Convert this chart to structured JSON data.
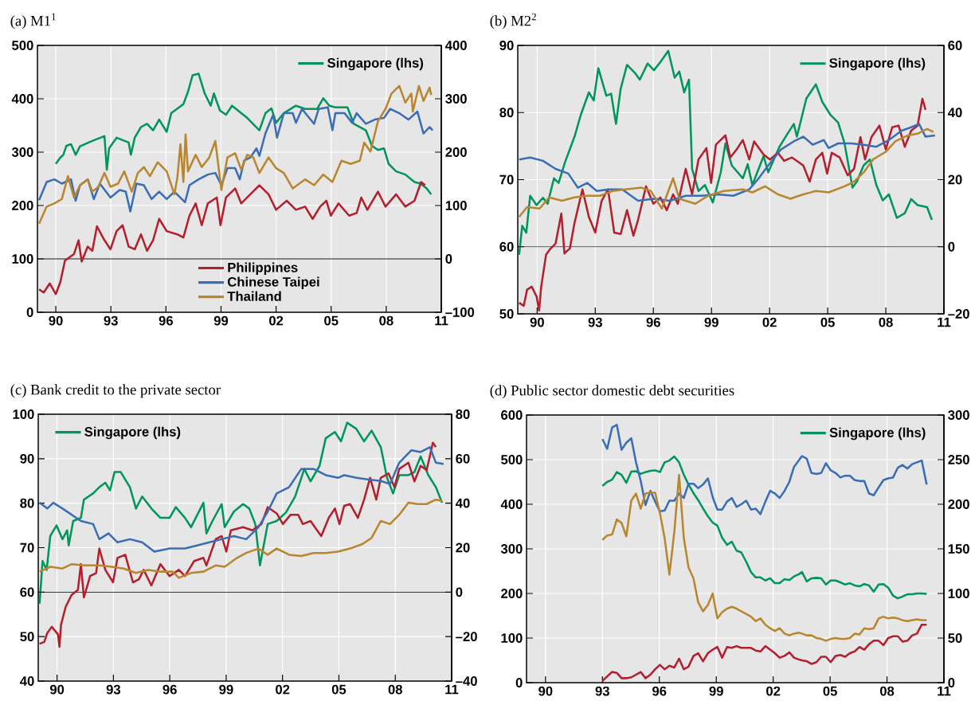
{
  "chart_data": [
    {
      "type": "line",
      "title": "(a) M1$^{1}$",
      "grid": true,
      "legend": "right",
      "xlim": [
        1989,
        2011
      ],
      "xticks": [
        {
          "value": 1990,
          "label": "90"
        },
        {
          "value": 1993,
          "label": "93"
        },
        {
          "value": 1996,
          "label": "96"
        },
        {
          "value": 1999,
          "label": "99"
        },
        {
          "value": 2002,
          "label": "02"
        },
        {
          "value": 2005,
          "label": "05"
        },
        {
          "value": 2008,
          "label": "08"
        },
        {
          "value": 2011,
          "label": "11"
        }
      ],
      "ylim": [
        0,
        500
      ],
      "yticks": [
        0,
        100,
        200,
        300,
        400,
        500
      ],
      "y2lim": [
        -100,
        400
      ],
      "y2ticks": [
        {
          "value": -100,
          "label": "–100"
        },
        0,
        100,
        200,
        300,
        400
      ],
      "ref_lines": [
        {
          "axis": "y2",
          "value": 0,
          "color": "#000000"
        }
      ],
      "series": [
        {
          "name": "Singapore (lhs)",
          "color": "#00955a",
          "x": [
            1990.0,
            1990.25,
            1990.41,
            1990.58,
            1990.83,
            1991.08,
            1991.32,
            1991.99,
            1992.65,
            1992.78,
            1992.9,
            1993.31,
            1993.97,
            1994.09,
            1994.3,
            1994.64,
            1994.97,
            1995.3,
            1995.63,
            1996.04,
            1996.29,
            1996.95,
            1997.2,
            1997.45,
            1997.78,
            1998.11,
            1998.44,
            1998.61,
            1998.94,
            1999.27,
            1999.6,
            2000.1,
            2000.43,
            2001.09,
            2001.42,
            2001.75,
            2002.0,
            2002.42,
            2003.08,
            2003.58,
            2004.24,
            2004.57,
            2004.9,
            2005.23,
            2005.89,
            2006.23,
            2006.89,
            2007.22,
            2007.55,
            2007.88,
            2008.13,
            2008.54,
            2009.04,
            2009.54,
            2009.87,
            2010.2,
            2010.45
          ],
          "values": [
            278,
            290,
            295,
            312,
            315,
            295,
            311,
            321,
            330,
            267,
            307,
            327,
            318,
            295,
            327,
            347,
            353,
            341,
            361,
            338,
            373,
            390,
            413,
            444,
            447,
            410,
            387,
            410,
            378,
            370,
            387,
            373,
            364,
            341,
            373,
            382,
            355,
            373,
            387,
            381,
            381,
            401,
            387,
            384,
            384,
            353,
            341,
            312,
            304,
            307,
            278,
            264,
            258,
            244,
            241,
            232,
            221
          ]
        },
        {
          "name": "Philippines",
          "color": "#b41f2e",
          "axis": "y2",
          "x": [
            1989.09,
            1989.34,
            1989.67,
            1990.0,
            1990.25,
            1990.5,
            1990.99,
            1991.24,
            1991.41,
            1991.74,
            1991.99,
            1992.24,
            1992.65,
            1992.98,
            1993.31,
            1993.64,
            1993.97,
            1994.3,
            1994.64,
            1994.97,
            1995.3,
            1995.63,
            1996.04,
            1996.62,
            1996.95,
            1997.28,
            1997.62,
            1997.95,
            1998.28,
            1998.77,
            1998.97,
            1999.27,
            1999.77,
            2000.1,
            2000.6,
            2001.09,
            2001.59,
            2002.0,
            2002.58,
            2003.08,
            2003.58,
            2003.99,
            2004.4,
            2004.74,
            2004.98,
            2005.4,
            2005.98,
            2006.39,
            2006.64,
            2006.97,
            2007.55,
            2007.96,
            2008.54,
            2009.04,
            2009.54,
            2009.9,
            2010.12
          ],
          "values": [
            -57,
            -63,
            -46,
            -66,
            -43,
            -3,
            9,
            35,
            -5,
            23,
            15,
            61,
            35,
            18,
            52,
            63,
            23,
            18,
            46,
            15,
            35,
            75,
            52,
            46,
            40,
            81,
            104,
            63,
            104,
            115,
            63,
            115,
            132,
            104,
            121,
            138,
            121,
            92,
            109,
            92,
            98,
            75,
            98,
            109,
            81,
            104,
            81,
            86,
            115,
            92,
            126,
            98,
            121,
            98,
            109,
            144,
            138
          ]
        },
        {
          "name": "Chinese Taipei",
          "color": "#3b6db4",
          "axis": "y2",
          "x": [
            1989.09,
            1989.5,
            1989.92,
            1990.33,
            1990.83,
            1991.08,
            1991.32,
            1991.74,
            1992.07,
            1992.4,
            1992.98,
            1993.48,
            1993.81,
            1994.06,
            1994.39,
            1994.8,
            1995.22,
            1995.63,
            1996.04,
            1996.46,
            1997.04,
            1997.28,
            1997.78,
            1998.28,
            1998.69,
            1999.02,
            1999.35,
            1999.77,
            2000.02,
            2000.26,
            2000.6,
            2000.93,
            2001.09,
            2001.42,
            2001.84,
            2002.05,
            2002.42,
            2002.91,
            2003.08,
            2003.41,
            2004.07,
            2004.32,
            2004.82,
            2005.07,
            2005.23,
            2005.73,
            2006.14,
            2006.39,
            2006.89,
            2007.38,
            2007.88,
            2008.21,
            2008.71,
            2009.21,
            2009.7,
            2010.03,
            2010.36,
            2010.53
          ],
          "values": [
            110,
            144,
            149,
            141,
            149,
            109,
            138,
            149,
            112,
            141,
            115,
            129,
            126,
            89,
            141,
            138,
            112,
            126,
            112,
            126,
            106,
            138,
            149,
            158,
            161,
            138,
            170,
            170,
            149,
            184,
            190,
            207,
            193,
            235,
            270,
            227,
            273,
            273,
            255,
            281,
            253,
            281,
            284,
            241,
            273,
            273,
            255,
            273,
            253,
            261,
            264,
            281,
            273,
            261,
            276,
            235,
            247,
            241
          ]
        },
        {
          "name": "Thailand",
          "color": "#b8862f",
          "axis": "y2",
          "x": [
            1989.09,
            1989.5,
            1989.92,
            1990.33,
            1990.66,
            1990.99,
            1991.32,
            1991.74,
            1991.99,
            1992.32,
            1992.65,
            1992.98,
            1993.39,
            1993.73,
            1994.14,
            1994.47,
            1994.8,
            1995.13,
            1995.55,
            1996.04,
            1996.46,
            1996.62,
            1996.79,
            1996.95,
            1997.07,
            1997.2,
            1997.62,
            1997.95,
            1998.36,
            1998.69,
            1999.02,
            1999.35,
            1999.77,
            2000.1,
            2000.43,
            2000.76,
            2001.09,
            2001.59,
            2002.0,
            2002.42,
            2002.91,
            2003.58,
            2004.07,
            2004.57,
            2005.07,
            2005.56,
            2006.06,
            2006.56,
            2006.8,
            2007.14,
            2007.55,
            2007.96,
            2008.29,
            2008.71,
            2009.04,
            2009.37,
            2009.45,
            2009.78,
            2010.03,
            2010.36,
            2010.45
          ],
          "values": [
            66,
            98,
            104,
            112,
            155,
            115,
            138,
            149,
            126,
            135,
            161,
            135,
            141,
            164,
            126,
            161,
            172,
            155,
            181,
            164,
            121,
            152,
            215,
            144,
            233,
            164,
            195,
            172,
            190,
            221,
            129,
            190,
            198,
            167,
            195,
            190,
            161,
            190,
            170,
            161,
            132,
            149,
            138,
            158,
            144,
            184,
            178,
            184,
            218,
            201,
            258,
            281,
            310,
            324,
            293,
            310,
            276,
            324,
            296,
            321,
            307
          ]
        }
      ]
    },
    {
      "type": "line",
      "title": "(b) M2$^{2}$",
      "grid": true,
      "legend": "top right",
      "xlim": [
        1989,
        2011
      ],
      "xticks": [
        {
          "value": 1990,
          "label": "90"
        },
        {
          "value": 1993,
          "label": "93"
        },
        {
          "value": 1996,
          "label": "96"
        },
        {
          "value": 1999,
          "label": "99"
        },
        {
          "value": 2002,
          "label": "02"
        },
        {
          "value": 2005,
          "label": "05"
        },
        {
          "value": 2008,
          "label": "08"
        },
        {
          "value": 2011,
          "label": "11"
        }
      ],
      "ylim": [
        50,
        90
      ],
      "yticks": [
        50,
        60,
        70,
        80,
        90
      ],
      "y2lim": [
        -20,
        60
      ],
      "y2ticks": [
        {
          "value": -20,
          "label": "–20"
        },
        0,
        20,
        40,
        60
      ],
      "ref_lines": [
        {
          "axis": "y2",
          "value": 0,
          "color": "#000000"
        }
      ],
      "series": [
        {
          "name": "Singapore (lhs)",
          "color": "#00955a",
          "x": [
            1989.07,
            1989.23,
            1989.44,
            1989.64,
            1989.97,
            1990.3,
            1990.54,
            1990.87,
            1991.11,
            1991.44,
            1991.93,
            1992.26,
            1992.67,
            1992.92,
            1993.16,
            1993.57,
            1993.82,
            1994.07,
            1994.31,
            1994.64,
            1995.05,
            1995.3,
            1995.7,
            1996.03,
            1996.36,
            1996.77,
            1997.1,
            1997.34,
            1997.59,
            1997.84,
            1998.0,
            1998.33,
            1998.66,
            1999.07,
            1999.48,
            1999.72,
            2000.05,
            2000.62,
            2000.87,
            2001.11,
            2001.69,
            2001.93,
            2002.51,
            2002.92,
            2003.25,
            2003.41,
            2003.9,
            2004.39,
            2004.72,
            2005.13,
            2005.54,
            2005.87,
            2006.28,
            2006.52,
            2006.85,
            2007.18,
            2007.51,
            2007.84,
            2008.16,
            2008.57,
            2008.98,
            2009.31,
            2009.64,
            2010.13,
            2010.38
          ],
          "values": [
            58.8,
            63.1,
            62.1,
            67.6,
            66.2,
            67.3,
            66.4,
            70.2,
            69.5,
            72.6,
            76.4,
            79.7,
            83.0,
            81.8,
            86.6,
            82.5,
            82.8,
            78.3,
            83.5,
            87.1,
            85.9,
            84.9,
            87.3,
            86.3,
            87.5,
            89.2,
            85.2,
            86.1,
            83.0,
            84.9,
            71.6,
            68.3,
            69.2,
            66.6,
            71.1,
            75.4,
            72.1,
            70.2,
            72.3,
            69.2,
            73.5,
            71.1,
            74.9,
            76.8,
            78.3,
            76.4,
            82.1,
            84.2,
            81.6,
            79.7,
            78.5,
            75.4,
            68.8,
            69.8,
            72.1,
            73.0,
            69.2,
            66.9,
            67.8,
            64.3,
            65.0,
            67.1,
            66.2,
            65.9,
            64.0
          ]
        },
        {
          "color": "#b41f2e",
          "axis": "y2",
          "x": [
            1989.07,
            1989.31,
            1989.48,
            1989.72,
            1989.97,
            1990.1,
            1990.21,
            1990.46,
            1990.7,
            1990.95,
            1991.25,
            1991.41,
            1991.69,
            1991.93,
            1992.34,
            1992.67,
            1993.0,
            1993.33,
            1993.66,
            1993.98,
            1994.31,
            1994.64,
            1994.97,
            1995.21,
            1995.62,
            1996.0,
            1996.36,
            1996.69,
            1997.02,
            1997.26,
            1997.67,
            1998.0,
            1998.33,
            1998.74,
            1998.98,
            1999.23,
            1999.72,
            1999.97,
            2000.3,
            2000.62,
            2000.95,
            2001.2,
            2001.69,
            2002.02,
            2002.43,
            2002.75,
            2003.16,
            2003.74,
            2004.07,
            2004.39,
            2004.72,
            2004.97,
            2005.21,
            2005.62,
            2006.03,
            2006.36,
            2006.69,
            2006.93,
            2007.26,
            2007.67,
            2008.0,
            2008.33,
            2008.66,
            2008.98,
            2009.31,
            2009.64,
            2009.89,
            2010.05
          ],
          "values": [
            -16.7,
            -17.6,
            -12.8,
            -11.9,
            -14.8,
            -19.0,
            -11.9,
            -2.4,
            -0.5,
            0.9,
            9.9,
            -2.0,
            -0.5,
            7.1,
            17.1,
            8.9,
            4.2,
            13.7,
            17.1,
            4.2,
            3.8,
            10.9,
            3.3,
            8.0,
            18.0,
            12.8,
            14.7,
            10.9,
            15.6,
            12.8,
            23.2,
            15.6,
            26.0,
            29.4,
            19.0,
            30.4,
            33.2,
            26.6,
            29.0,
            31.8,
            26.0,
            31.4,
            27.5,
            26.0,
            28.0,
            25.6,
            26.6,
            24.2,
            19.4,
            26.0,
            28.0,
            21.8,
            28.0,
            26.6,
            21.3,
            23.2,
            32.7,
            26.0,
            32.7,
            36.1,
            29.0,
            35.6,
            36.1,
            29.8,
            34.6,
            36.1,
            44.1,
            40.8
          ]
        },
        {
          "color": "#3b6db4",
          "axis": "y2",
          "x": [
            1989.07,
            1989.64,
            1990.3,
            1990.95,
            1991.61,
            1992.1,
            1992.59,
            1993.08,
            1993.74,
            1994.39,
            1995.21,
            1996.03,
            1996.85,
            1997.67,
            1998.49,
            1999.31,
            2000.13,
            2000.95,
            2001.44,
            2001.93,
            2002.59,
            2003.25,
            2003.74,
            2004.23,
            2004.8,
            2005.05,
            2005.54,
            2006.2,
            2006.85,
            2007.51,
            2008.16,
            2008.82,
            2009.31,
            2009.72,
            2010.05,
            2010.54
          ],
          "values": [
            26.0,
            26.6,
            25.6,
            23.2,
            21.8,
            17.6,
            19.0,
            16.6,
            17.1,
            17.1,
            13.7,
            14.3,
            13.7,
            15.2,
            15.2,
            15.6,
            15.2,
            17.1,
            20.4,
            24.2,
            29.0,
            31.4,
            32.8,
            30.4,
            31.8,
            29.4,
            30.8,
            30.8,
            30.4,
            29.8,
            31.8,
            34.6,
            35.6,
            36.6,
            32.8,
            33.2
          ]
        },
        {
          "color": "#b8862f",
          "axis": "y2",
          "x": [
            1989.07,
            1989.48,
            1990.13,
            1990.62,
            1991.28,
            1991.93,
            1992.59,
            1993.25,
            1993.9,
            1994.56,
            1995.38,
            1995.87,
            1996.44,
            1997.02,
            1997.34,
            1998.16,
            1998.82,
            1999.64,
            2000.62,
            2001.11,
            2001.77,
            2002.43,
            2003.08,
            2003.74,
            2004.39,
            2005.05,
            2005.87,
            2006.36,
            2006.85,
            2007.34,
            2008.0,
            2008.49,
            2009.15,
            2009.64,
            2010.13,
            2010.46
          ],
          "values": [
            8.9,
            11.8,
            11.4,
            14.7,
            13.7,
            14.7,
            15.2,
            15.2,
            16.6,
            17.1,
            17.6,
            16.6,
            11.4,
            20.4,
            14.3,
            12.8,
            15.2,
            16.6,
            17.1,
            16.2,
            18.0,
            15.6,
            14.3,
            15.6,
            16.6,
            16.2,
            18.0,
            19.4,
            22.1,
            26.0,
            28.3,
            31.4,
            33.2,
            33.7,
            35.1,
            34.2
          ]
        }
      ]
    },
    {
      "type": "line",
      "title": "(c) Bank credit to the private sector",
      "grid": true,
      "legend": "top left",
      "xlim": [
        1989,
        2011
      ],
      "xticks": [
        {
          "value": 1990,
          "label": "90"
        },
        {
          "value": 1993,
          "label": "93"
        },
        {
          "value": 1996,
          "label": "96"
        },
        {
          "value": 1999,
          "label": "99"
        },
        {
          "value": 2002,
          "label": "02"
        },
        {
          "value": 2005,
          "label": "05"
        },
        {
          "value": 2008,
          "label": "08"
        },
        {
          "value": 2011,
          "label": "11"
        }
      ],
      "ylim": [
        40,
        100
      ],
      "yticks": [
        40,
        50,
        60,
        70,
        80,
        90,
        100
      ],
      "y2lim": [
        -40,
        80
      ],
      "y2ticks": [
        {
          "value": -40,
          "label": "–40"
        },
        {
          "value": -20,
          "label": "–20"
        },
        0,
        20,
        40,
        60,
        80
      ],
      "ref_lines": [
        {
          "axis": "y2",
          "value": 0,
          "color": "#000000"
        }
      ],
      "series": [
        {
          "name": "Singapore (lhs)",
          "color": "#00955a",
          "x": [
            1989.07,
            1989.23,
            1989.45,
            1989.64,
            1989.97,
            1990.29,
            1990.54,
            1990.62,
            1990.86,
            1991.27,
            1991.43,
            1991.92,
            1992.25,
            1992.57,
            1992.82,
            1993.06,
            1993.39,
            1993.88,
            1994.2,
            1994.53,
            1995.02,
            1995.5,
            1995.99,
            1996.32,
            1996.81,
            1997.13,
            1997.79,
            1997.95,
            1998.27,
            1998.76,
            1998.92,
            1999.41,
            1999.9,
            2000.23,
            2000.55,
            2000.8,
            2001.21,
            2001.69,
            2002.18,
            2002.67,
            2003.16,
            2003.49,
            2003.97,
            2004.3,
            2004.79,
            2005.11,
            2005.44,
            2005.93,
            2006.34,
            2006.74,
            2007.23,
            2007.56,
            2007.88,
            2008.21,
            2008.7,
            2009.02,
            2009.35,
            2009.76,
            2010.16,
            2010.49
          ],
          "values": [
            57.4,
            67.0,
            65.0,
            72.6,
            75.0,
            71.9,
            73.9,
            70.5,
            76.0,
            76.7,
            80.8,
            82.2,
            83.6,
            84.6,
            82.9,
            87.0,
            87.0,
            83.6,
            78.8,
            81.5,
            78.8,
            76.7,
            76.7,
            79.1,
            76.7,
            74.6,
            80.1,
            73.2,
            76.0,
            79.8,
            74.6,
            78.1,
            79.8,
            78.8,
            75.3,
            66.0,
            75.3,
            76.0,
            77.9,
            81.5,
            87.7,
            84.9,
            88.4,
            94.6,
            96.0,
            93.9,
            98.1,
            96.7,
            93.9,
            96.3,
            92.6,
            85.7,
            82.2,
            86.3,
            86.3,
            87.0,
            90.5,
            86.3,
            83.6,
            80.1
          ]
        },
        {
          "color": "#b41f2e",
          "axis": "y2",
          "x": [
            1989.07,
            1989.32,
            1989.48,
            1989.72,
            1990.05,
            1990.13,
            1990.21,
            1990.46,
            1990.78,
            1991.11,
            1991.27,
            1991.43,
            1991.76,
            1992.08,
            1992.25,
            1992.57,
            1992.98,
            1993.22,
            1993.63,
            1994.04,
            1994.36,
            1994.61,
            1995.02,
            1995.5,
            1995.99,
            1996.48,
            1996.81,
            1997.3,
            1997.79,
            1997.95,
            1998.44,
            1998.76,
            1999.01,
            1999.25,
            1999.9,
            2000.39,
            2000.88,
            2001.21,
            2001.69,
            2002.02,
            2002.43,
            2002.83,
            2003.08,
            2003.49,
            2004.06,
            2004.46,
            2004.79,
            2005.03,
            2005.28,
            2005.6,
            2006.01,
            2006.34,
            2006.66,
            2006.99,
            2007.23,
            2007.64,
            2007.96,
            2008.21,
            2008.7,
            2009.02,
            2009.35,
            2009.67,
            2010.0,
            2010.16
          ],
          "values": [
            -23.2,
            -22.4,
            -18.4,
            -15.6,
            -19.0,
            -24.6,
            -14.8,
            -6.6,
            -1.2,
            1.0,
            12.6,
            -2.4,
            7.2,
            8.6,
            19.6,
            10.0,
            4.4,
            15.4,
            16.8,
            4.4,
            5.8,
            10.0,
            3.0,
            12.6,
            7.2,
            10.0,
            7.2,
            14.0,
            15.4,
            12.0,
            23.8,
            25.2,
            18.2,
            27.8,
            29.2,
            27.8,
            30.6,
            38.2,
            35.4,
            30.6,
            34.8,
            34.8,
            30.6,
            32.0,
            25.2,
            33.4,
            37.6,
            30.6,
            38.8,
            39.6,
            33.4,
            41.6,
            51.4,
            41.6,
            51.4,
            53.4,
            47.2,
            55.4,
            58.2,
            49.8,
            56.8,
            54.8,
            67.2,
            65.2
          ]
        },
        {
          "color": "#3b6db4",
          "axis": "y2",
          "x": [
            1989.07,
            1989.48,
            1989.8,
            1990.29,
            1990.78,
            1991.27,
            1991.92,
            1992.25,
            1992.74,
            1993.22,
            1993.88,
            1994.53,
            1995.18,
            1995.99,
            1996.81,
            1997.46,
            1998.11,
            1998.76,
            1999.41,
            2000.07,
            2000.72,
            2001.21,
            2001.69,
            2002.35,
            2003.0,
            2003.65,
            2004.3,
            2004.95,
            2005.28,
            2005.93,
            2006.58,
            2007.23,
            2007.72,
            2008.21,
            2008.86,
            2009.35,
            2009.84,
            2010.16,
            2010.57
          ],
          "values": [
            40.2,
            37.6,
            40.2,
            37.6,
            34.8,
            32.0,
            30.6,
            23.8,
            26.4,
            22.4,
            23.8,
            22.4,
            18.2,
            19.6,
            19.6,
            21.0,
            22.4,
            23.8,
            25.2,
            23.8,
            29.2,
            36.2,
            44.4,
            47.2,
            55.4,
            55.4,
            52.6,
            51.4,
            52.6,
            51.4,
            50.6,
            50.0,
            48.6,
            58.2,
            63.8,
            63.0,
            65.2,
            58.2,
            57.6
          ]
        },
        {
          "color": "#b8862f",
          "axis": "y2",
          "x": [
            1989.07,
            1989.64,
            1990.29,
            1990.78,
            1991.43,
            1992.25,
            1992.9,
            1993.55,
            1994.2,
            1994.85,
            1995.5,
            1996.16,
            1996.48,
            1997.13,
            1997.79,
            1998.44,
            1998.92,
            1999.58,
            2000.07,
            2000.72,
            2001.21,
            2001.69,
            2002.35,
            2003.0,
            2003.65,
            2004.3,
            2004.95,
            2005.6,
            2006.25,
            2006.74,
            2007.23,
            2007.72,
            2008.21,
            2008.7,
            2009.18,
            2009.67,
            2010.16,
            2010.49
          ],
          "values": [
            9.2,
            11.4,
            10.6,
            12.6,
            12.0,
            12.0,
            11.4,
            10.6,
            8.6,
            10.0,
            9.2,
            9.2,
            6.4,
            8.6,
            9.2,
            12.0,
            11.4,
            15.4,
            17.6,
            19.6,
            16.8,
            19.6,
            16.8,
            16.2,
            17.6,
            17.6,
            18.2,
            19.6,
            21.6,
            24.4,
            32.0,
            30.6,
            34.8,
            40.2,
            39.6,
            39.6,
            41.6,
            41.0
          ]
        }
      ]
    },
    {
      "type": "line",
      "title": "(d) Public sector domestic debt securities",
      "grid": true,
      "legend": "top right",
      "xlim": [
        1989,
        2011
      ],
      "xticks": [
        {
          "value": 1990,
          "label": "90"
        },
        {
          "value": 1993,
          "label": "93"
        },
        {
          "value": 1996,
          "label": "96"
        },
        {
          "value": 1999,
          "label": "99"
        },
        {
          "value": 2002,
          "label": "02"
        },
        {
          "value": 2005,
          "label": "05"
        },
        {
          "value": 2008,
          "label": "08"
        },
        {
          "value": 2011,
          "label": "11"
        }
      ],
      "ylim": [
        0,
        600
      ],
      "yticks": [
        0,
        100,
        200,
        300,
        400,
        500,
        600
      ],
      "y2lim": [
        0,
        300
      ],
      "y2ticks": [
        0,
        50,
        100,
        150,
        200,
        250,
        300
      ],
      "x": [
        1993.0,
        1993.25,
        1993.51,
        1993.76,
        1994.01,
        1994.26,
        1994.52,
        1994.77,
        1995.02,
        1995.27,
        1995.53,
        1995.78,
        1996.03,
        1996.28,
        1996.53,
        1996.79,
        1997.04,
        1997.29,
        1997.54,
        1997.8,
        1998.05,
        1998.3,
        1998.56,
        1998.81,
        1999.06,
        1999.31,
        1999.57,
        1999.82,
        2000.07,
        2000.32,
        2000.58,
        2000.83,
        2001.08,
        2001.33,
        2001.59,
        2001.84,
        2002.09,
        2002.34,
        2002.6,
        2002.85,
        2003.1,
        2003.35,
        2003.52,
        2003.77,
        2004.02,
        2004.28,
        2004.53,
        2004.78,
        2005.03,
        2005.29,
        2005.54,
        2005.79,
        2006.04,
        2006.3,
        2006.55,
        2006.8,
        2007.05,
        2007.3,
        2007.56,
        2007.81,
        2008.06,
        2008.32,
        2008.57,
        2008.82,
        2009.07,
        2009.33,
        2009.58,
        2009.83,
        2010.09
      ],
      "series": [
        {
          "name": "Singapore (lhs)",
          "color": "#00955a",
          "values": [
            441,
            450,
            455,
            472,
            466,
            448,
            473,
            474,
            468,
            472,
            475,
            476,
            472,
            494,
            498,
            507,
            494,
            466,
            444,
            425,
            409,
            391,
            373,
            359,
            352,
            325,
            309,
            316,
            296,
            292,
            271,
            248,
            236,
            236,
            229,
            234,
            223,
            223,
            232,
            230,
            238,
            243,
            248,
            227,
            234,
            235,
            234,
            220,
            229,
            229,
            225,
            220,
            223,
            218,
            216,
            221,
            218,
            204,
            220,
            221,
            213,
            195,
            189,
            193,
            198,
            198,
            200,
            200,
            199
          ]
        },
        {
          "color": "#b41f2e",
          "axis": "y2",
          "values": [
            2,
            7,
            12,
            11,
            5,
            5,
            6,
            9,
            12,
            5,
            9,
            15,
            20,
            15,
            19,
            17,
            27,
            15,
            18,
            30,
            33,
            24,
            33,
            37,
            40,
            28,
            40,
            39,
            41,
            39,
            39,
            39,
            36,
            35,
            41,
            37,
            33,
            28,
            30,
            34,
            28,
            26,
            25,
            24,
            21,
            23,
            29,
            29,
            23,
            30,
            31,
            29,
            33,
            35,
            40,
            37,
            43,
            47,
            47,
            42,
            50,
            52,
            52,
            46,
            47,
            53,
            55,
            65,
            65
          ]
        },
        {
          "color": "#3b6db4",
          "axis": "y2",
          "values": [
            273,
            262,
            286,
            289,
            261,
            269,
            274,
            247,
            226,
            199,
            215,
            203,
            192,
            193,
            204,
            204,
            212,
            207,
            223,
            223,
            218,
            222,
            229,
            208,
            194,
            194,
            203,
            207,
            197,
            200,
            204,
            194,
            195,
            189,
            203,
            215,
            212,
            207,
            215,
            225,
            242,
            249,
            254,
            251,
            235,
            234,
            235,
            246,
            238,
            235,
            230,
            232,
            232,
            227,
            226,
            226,
            212,
            210,
            219,
            227,
            229,
            230,
            241,
            244,
            240,
            245,
            247,
            249,
            222
          ]
        },
        {
          "color": "#b8862f",
          "axis": "y2",
          "values": [
            160,
            165,
            166,
            183,
            179,
            164,
            204,
            212,
            195,
            212,
            213,
            213,
            190,
            162,
            121,
            169,
            233,
            162,
            129,
            117,
            90,
            80,
            87,
            100,
            72,
            79,
            83,
            85,
            83,
            80,
            77,
            74,
            69,
            72,
            65,
            61,
            58,
            61,
            55,
            53,
            55,
            56,
            55,
            53,
            53,
            50,
            49,
            47,
            49,
            50,
            49,
            49,
            50,
            55,
            54,
            61,
            60,
            61,
            72,
            74,
            72,
            73,
            72,
            70,
            69,
            70,
            71,
            70,
            70
          ]
        }
      ]
    }
  ]
}
